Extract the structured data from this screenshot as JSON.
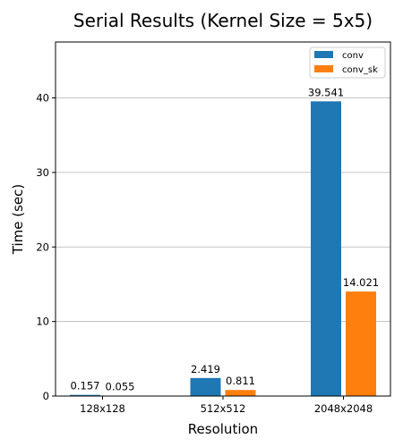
{
  "chart_data": {
    "type": "bar",
    "title": "Serial Results (Kernel Size = 5x5)",
    "xlabel": "Resolution",
    "ylabel": "Time (sec)",
    "categories": [
      "128x128",
      "512x512",
      "2048x2048"
    ],
    "series": [
      {
        "name": "conv",
        "values": [
          0.157,
          2.419,
          39.541
        ],
        "labels": [
          "0.157",
          "2.419",
          "39.541"
        ],
        "color": "#1f77b4"
      },
      {
        "name": "conv_sk",
        "values": [
          0.055,
          0.811,
          14.021
        ],
        "labels": [
          "0.055",
          "0.811",
          "14.021"
        ],
        "color": "#ff7f0e"
      }
    ],
    "ylim": [
      0,
      47.5
    ],
    "yticks": [
      0,
      10,
      20,
      30,
      40
    ],
    "grid": "y",
    "legend": "top-right"
  }
}
